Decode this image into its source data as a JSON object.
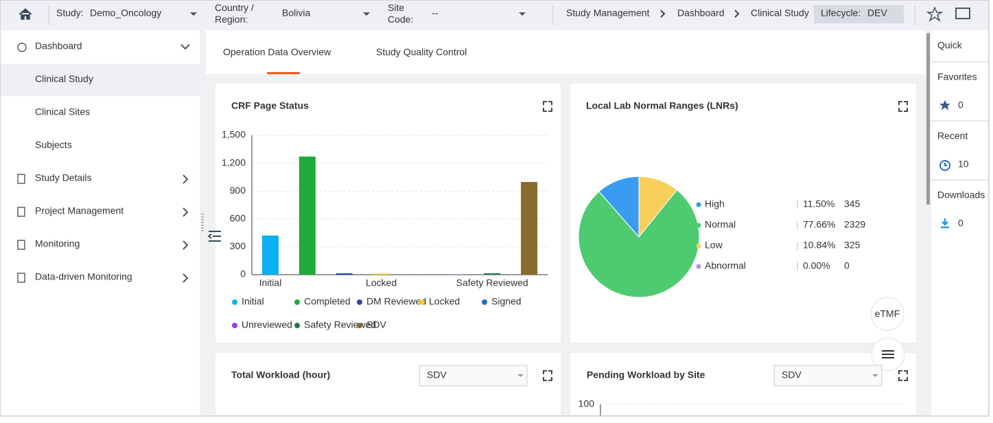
{
  "header": {
    "study_label": "Study:",
    "study": "Demo_Oncology",
    "region_label": "Country / Region:",
    "region": "Bolivia",
    "site_label": "Site Code:",
    "site": "--",
    "breadcrumbs": [
      "Study Management",
      "Dashboard",
      "Clinical Study"
    ],
    "lifecycle_label": "Lifecycle:",
    "lifecycle": "DEV"
  },
  "sidebar": {
    "items": [
      "Dashboard",
      "Clinical Study",
      "Clinical Sites",
      "Subjects",
      "Study Details",
      "Project Management",
      "Monitoring",
      "Data-driven Monitoring"
    ]
  },
  "tabs": [
    "Operation Data Overview",
    "Study Quality Control"
  ],
  "quick_panel": {
    "title": "Quick",
    "favorites_label": "Favorites",
    "favorites": 0,
    "recent_label": "Recent",
    "recent": 10,
    "downloads_label": "Downloads",
    "downloads": 0
  },
  "floating": {
    "etmf": "eTMF"
  },
  "chart_data": [
    {
      "type": "bar",
      "title": "CRF Page Status",
      "categories": [
        "Initial",
        null,
        null,
        "Locked",
        null,
        null,
        "Safety Reviewed",
        null
      ],
      "values": [
        421,
        1271,
        15,
        12,
        2,
        3,
        15,
        998
      ],
      "legend_labels": [
        "Initial",
        "Completed",
        "DM Reviewed",
        "Locked",
        "Signed",
        "Unreviewed",
        "Safety Reviewed",
        "SDV"
      ],
      "colors": [
        "#0bb0f0",
        "#22aa3a",
        "#2a4aa8",
        "#f4cf2a",
        "#1e6fd0",
        "#9b3ce8",
        "#1f7a4a",
        "#8b6a2e"
      ],
      "ylim": [
        0,
        1500
      ],
      "yticks": [
        0,
        300,
        600,
        900,
        {
          "value": 1200,
          "label": "1,200"
        },
        {
          "value": 1500,
          "label": "1,500"
        }
      ],
      "grid": true
    },
    {
      "type": "pie",
      "title": "Local Lab Normal Ranges (LNRs)",
      "categories": [
        "High",
        "Normal",
        "Low",
        "Abnormal"
      ],
      "values": [
        11.5,
        77.66,
        10.84,
        0
      ],
      "value_labels": [
        "11.50%",
        "77.66%",
        "10.84%",
        "0.00%"
      ],
      "counts": [
        345,
        2329,
        325,
        0
      ],
      "colors": [
        "#3a9cf0",
        "#4ecb71",
        "#f8cf5a",
        "#b58ee6"
      ]
    },
    {
      "type": "bar",
      "title": "Total Workload (hour)",
      "selector": "SDV"
    },
    {
      "type": "bar",
      "title": "Pending Workload by Site",
      "selector": "SDV",
      "yticks": [
        100
      ]
    }
  ]
}
